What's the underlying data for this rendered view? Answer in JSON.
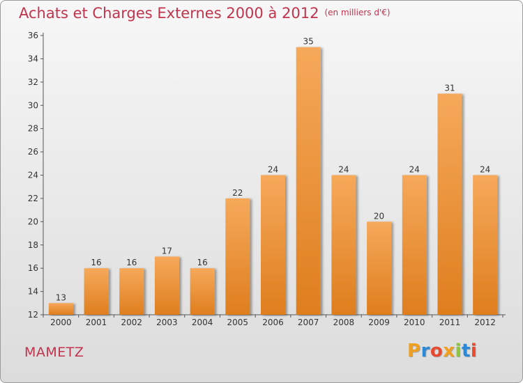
{
  "header": {
    "title": "Achats et Charges Externes 2000 à 2012",
    "subtitle": "(en milliers d'€)"
  },
  "footer": {
    "commune": "MAMETZ",
    "logo": "Proxiti",
    "logo_colors": [
      "#f0a020",
      "#2a8ad8",
      "#e84a30",
      "#f0a020",
      "#8cc63f",
      "#2a8ad8",
      "#e84a30"
    ]
  },
  "colors": {
    "bar_light": "#f6a95a",
    "bar_dark": "#de7e1e",
    "title": "#c0344d"
  },
  "chart_data": {
    "type": "bar",
    "title": "Achats et Charges Externes 2000 à 2012",
    "subtitle": "(en milliers d'€)",
    "xlabel": "",
    "ylabel": "",
    "categories": [
      "2000",
      "2001",
      "2002",
      "2003",
      "2004",
      "2005",
      "2006",
      "2007",
      "2008",
      "2009",
      "2010",
      "2011",
      "2012"
    ],
    "values": [
      13,
      16,
      16,
      17,
      16,
      22,
      24,
      35,
      24,
      20,
      24,
      31,
      24
    ],
    "ylim": [
      12,
      36
    ],
    "yticks": [
      12,
      14,
      16,
      18,
      20,
      22,
      24,
      26,
      28,
      30,
      32,
      34,
      36
    ],
    "grid": false
  }
}
